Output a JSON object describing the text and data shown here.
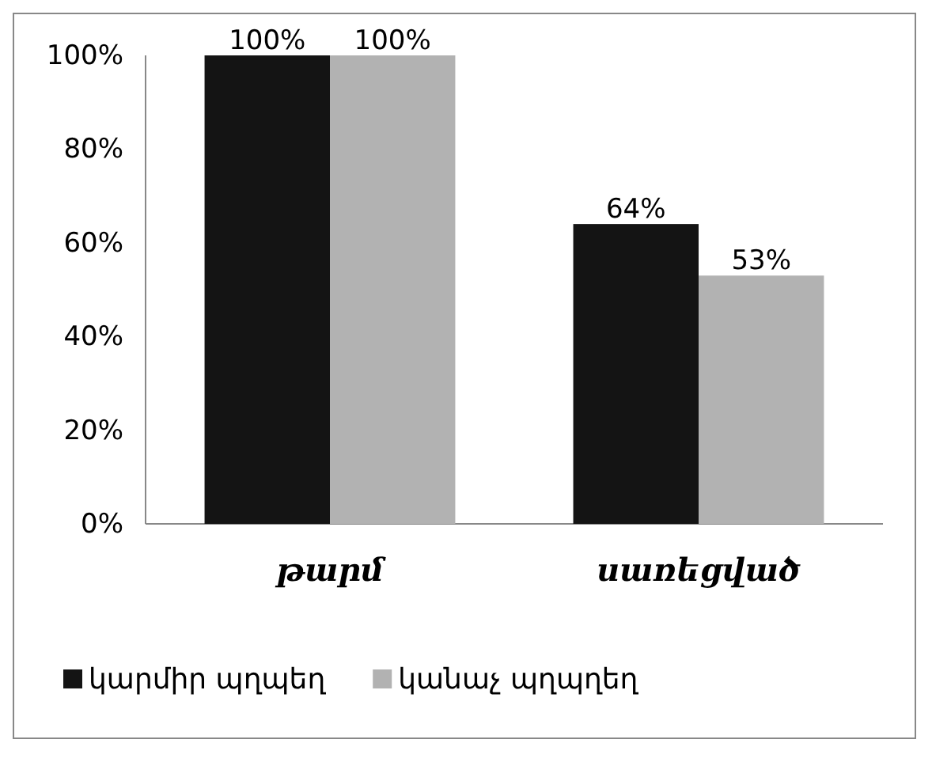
{
  "chart_data": {
    "type": "bar",
    "categories": [
      "թարմ",
      "սառեցված"
    ],
    "series": [
      {
        "name": "կարմիր պղպեղ",
        "color": "#141414",
        "values": [
          100,
          64
        ],
        "value_labels": [
          "100%",
          "64%"
        ]
      },
      {
        "name": "կանաչ պղպղեղ",
        "color": "#b2b2b2",
        "values": [
          100,
          53
        ],
        "value_labels": [
          "100%",
          "53%"
        ]
      }
    ],
    "ylim": [
      0,
      100
    ],
    "yticks": [
      {
        "value": 0,
        "label": "0%"
      },
      {
        "value": 20,
        "label": "20%"
      },
      {
        "value": 40,
        "label": "40%"
      },
      {
        "value": 60,
        "label": "60%"
      },
      {
        "value": 80,
        "label": "80%"
      },
      {
        "value": 100,
        "label": "100%"
      }
    ],
    "grid": false,
    "legend": "bottom"
  }
}
